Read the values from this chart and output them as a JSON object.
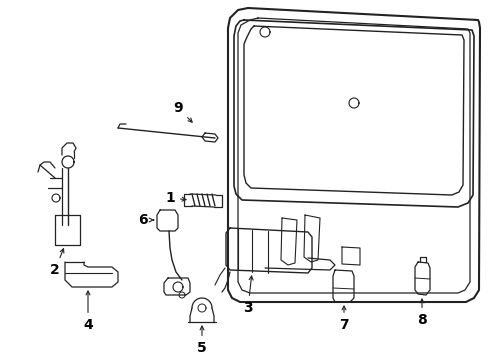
{
  "bg_color": "#ffffff",
  "line_color": "#222222",
  "text_color": "#000000",
  "fig_width": 4.89,
  "fig_height": 3.6,
  "dpi": 100
}
